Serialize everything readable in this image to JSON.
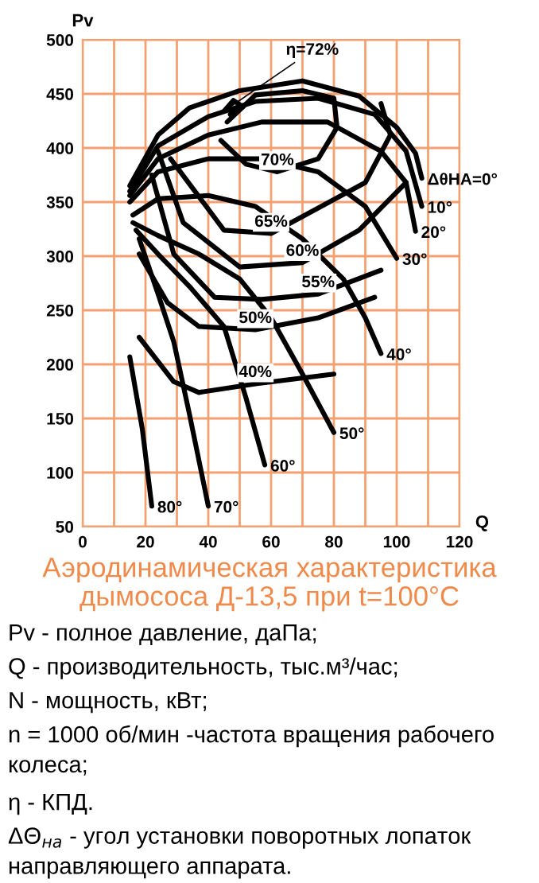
{
  "chart_data": {
    "type": "line",
    "title": "Аэродинамическая характеристика\nдымососа Д-13,5 при t=100°C",
    "xlabel": "Q",
    "ylabel": "Pv",
    "xlim": [
      0,
      120
    ],
    "ylim": [
      50,
      500
    ],
    "xticks": [
      0,
      {
        "value": 10,
        "label": null
      },
      20,
      {
        "value": 30,
        "label": null
      },
      40,
      {
        "value": 50,
        "label": null
      },
      60,
      {
        "value": 70,
        "label": null
      },
      80,
      {
        "value": 90,
        "label": null
      },
      100,
      {
        "value": 110,
        "label": null
      },
      120
    ],
    "yticks": [
      50,
      100,
      150,
      200,
      250,
      300,
      350,
      400,
      450,
      500
    ],
    "grid": true,
    "legend": false,
    "marker": "none",
    "line_style": "solid",
    "series": [
      {
        "color": "#000000",
        "x": [
          15,
          24,
          34,
          50,
          70,
          88,
          100,
          106,
          108
        ],
        "values": [
          365,
          412,
          437,
          453,
          462,
          448,
          419,
          395,
          372
        ]
      },
      {
        "color": "#000000",
        "x": [
          15,
          24,
          40,
          55,
          75,
          93,
          103,
          108
        ],
        "values": [
          360,
          402,
          429,
          443,
          446,
          431,
          397,
          346
        ]
      },
      {
        "color": "#000000",
        "x": [
          15,
          24,
          40,
          57,
          78,
          95,
          103,
          106
        ],
        "values": [
          356,
          390,
          412,
          424,
          424,
          397,
          368,
          323
        ]
      },
      {
        "color": "#000000",
        "x": [
          15,
          24,
          40,
          57,
          75,
          90,
          100
        ],
        "values": [
          350,
          378,
          390,
          390,
          378,
          346,
          298
        ]
      },
      {
        "color": "#000000",
        "x": [
          16,
          24,
          40,
          55,
          70,
          83,
          90,
          95
        ],
        "values": [
          338,
          353,
          356,
          346,
          316,
          279,
          243,
          210
        ]
      },
      {
        "color": "#000000",
        "x": [
          16,
          24,
          37,
          50,
          60,
          70,
          80
        ],
        "values": [
          331,
          319,
          302,
          279,
          243,
          191,
          137
        ]
      },
      {
        "color": "#000000",
        "x": [
          17,
          24,
          34,
          45,
          52,
          58
        ],
        "values": [
          324,
          302,
          272,
          235,
          169,
          107
        ]
      },
      {
        "color": "#000000",
        "x": [
          18,
          24,
          29,
          34,
          40
        ],
        "values": [
          316,
          265,
          221,
          154,
          69
        ]
      },
      {
        "color": "#000000",
        "x": [
          15,
          19,
          22
        ],
        "values": [
          207,
          140,
          69
        ]
      },
      {
        "color": "#000000",
        "x": [
          45,
          48,
          51,
          47
        ],
        "values": [
          434,
          444,
          438,
          431
        ]
      },
      {
        "color": "#000000",
        "x": [
          44,
          52,
          62,
          75,
          81,
          80,
          70,
          55,
          46
        ],
        "values": [
          407,
          385,
          378,
          390,
          419,
          446,
          453,
          449,
          424
        ]
      },
      {
        "color": "#000000",
        "x": [
          28,
          45,
          60,
          90,
          98,
          95
        ],
        "values": [
          390,
          324,
          321,
          368,
          412,
          441
        ]
      },
      {
        "color": "#000000",
        "x": [
          24,
          32,
          50,
          70,
          88,
          103
        ],
        "values": [
          397,
          331,
          290,
          294,
          324,
          368
        ]
      },
      {
        "color": "#000000",
        "x": [
          22,
          29,
          42,
          57,
          75,
          95
        ],
        "values": [
          375,
          302,
          262,
          260,
          265,
          287
        ]
      },
      {
        "color": "#000000",
        "x": [
          18,
          27,
          37,
          55,
          75,
          93
        ],
        "values": [
          302,
          257,
          235,
          232,
          243,
          262
        ]
      },
      {
        "color": "#000000",
        "x": [
          18,
          29,
          37,
          55,
          80
        ],
        "values": [
          225,
          184,
          174,
          182,
          191
        ]
      }
    ],
    "annotations": [
      {
        "text": "η=72%",
        "x": 45,
        "y": 434
      },
      {
        "text": "70%",
        "x": 62,
        "y": 378
      },
      {
        "text": "65%",
        "x": 60,
        "y": 321
      },
      {
        "text": "60%",
        "x": 70,
        "y": 294
      },
      {
        "text": "55%",
        "x": 75,
        "y": 265
      },
      {
        "text": "50%",
        "x": 55,
        "y": 232
      },
      {
        "text": "40%",
        "x": 55,
        "y": 182
      },
      {
        "text": "ΔθHA=0°",
        "x": 108,
        "y": 372
      },
      {
        "text": "10°",
        "x": 108,
        "y": 346
      },
      {
        "text": "20°",
        "x": 106,
        "y": 323
      },
      {
        "text": "30°",
        "x": 100,
        "y": 298
      },
      {
        "text": "40°",
        "x": 95,
        "y": 210
      },
      {
        "text": "50°",
        "x": 80,
        "y": 137
      },
      {
        "text": "60°",
        "x": 58,
        "y": 107
      },
      {
        "text": "70°",
        "x": 40,
        "y": 69
      },
      {
        "text": "80°",
        "x": 22,
        "y": 69
      },
      "Pv - полное давление, даПа;",
      "Q - производительность, тыс.м³/час;",
      "N - мощность, кВт;",
      "n = 1000 об/мин -частота вращения рабочего\nколеса;",
      "η - КПД.",
      "ΔΘ$_{на}$ - угол установки поворотных лопаток\nнаправляющего аппарата."
    ]
  }
}
